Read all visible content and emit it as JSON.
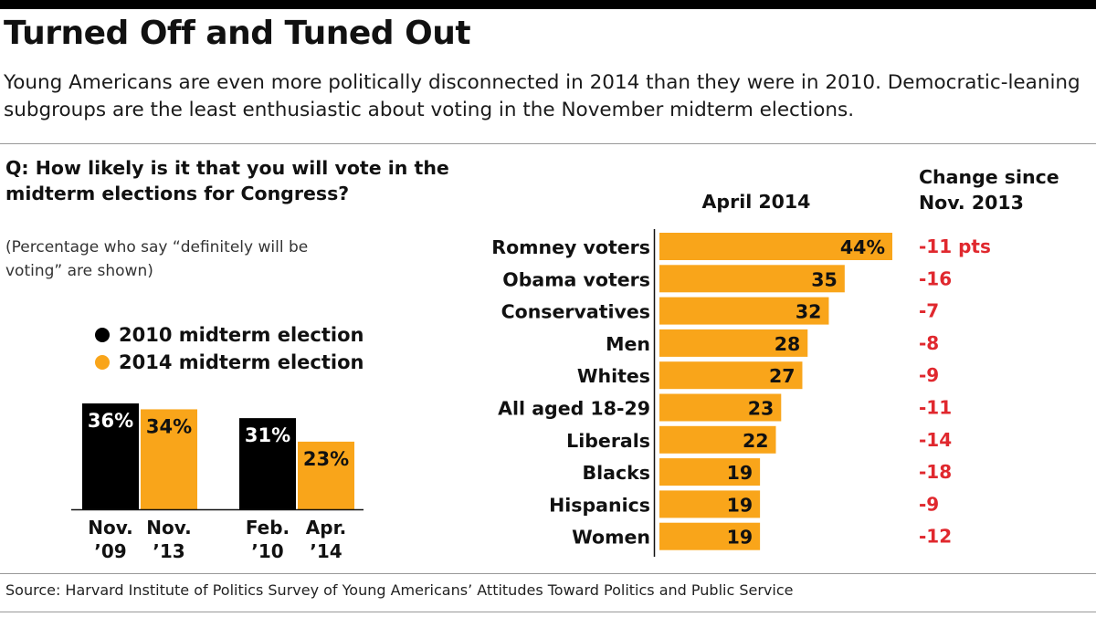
{
  "title": "Turned Off and Tuned Out",
  "subtitle": "Young Americans are even more politically disconnected in 2014 than they were in 2010. Democratic-leaning subgroups are the least enthusiastic about voting in the November midterm elections.",
  "question": "Q: How likely is it that you will vote in the midterm elections for Congress?",
  "note": "(Percentage who say “definitely will be voting” are shown)",
  "legend": [
    {
      "label": "2010 midterm election",
      "color": "#000000"
    },
    {
      "label": "2014 midterm election",
      "color": "#f9a51a"
    }
  ],
  "source": "Source: Harvard Institute of Politics Survey of Young Americans’ Attitudes Toward Politics and Public Service",
  "chart_data": [
    {
      "type": "bar",
      "categories": [
        "Nov. ’09",
        "Nov. ’13",
        "Feb. ’10",
        "Apr. ’14"
      ],
      "category_lines": [
        [
          "Nov.",
          "’09"
        ],
        [
          "Nov.",
          "’13"
        ],
        [
          "Feb.",
          "’10"
        ],
        [
          "Apr.",
          "’14"
        ]
      ],
      "values": [
        36,
        34,
        31,
        23
      ],
      "value_labels": [
        "36%",
        "34%",
        "31%",
        "23%"
      ],
      "series_index": [
        0,
        1,
        0,
        1
      ],
      "ylim": [
        0,
        36
      ],
      "grid": false
    },
    {
      "type": "bar",
      "orientation": "horizontal",
      "title": "April 2014",
      "change_title": "Change since Nov. 2013",
      "change_title_lines": [
        "Change since",
        "Nov. 2013"
      ],
      "categories": [
        "Romney voters",
        "Obama voters",
        "Conservatives",
        "Men",
        "Whites",
        "All aged 18-29",
        "Liberals",
        "Blacks",
        "Hispanics",
        "Women"
      ],
      "values": [
        44,
        35,
        32,
        28,
        27,
        23,
        22,
        19,
        19,
        19
      ],
      "value_labels": [
        "44%",
        "35",
        "32",
        "28",
        "27",
        "23",
        "22",
        "19",
        "19",
        "19"
      ],
      "changes": [
        "-11 pts",
        "-16",
        "-7",
        "-8",
        "-9",
        "-11",
        "-14",
        "-18",
        "-9",
        "-12"
      ],
      "colors": {
        "bar": "#f9a51a",
        "change": "#e0282e"
      },
      "xlim": [
        0,
        44
      ],
      "grid": false
    }
  ]
}
